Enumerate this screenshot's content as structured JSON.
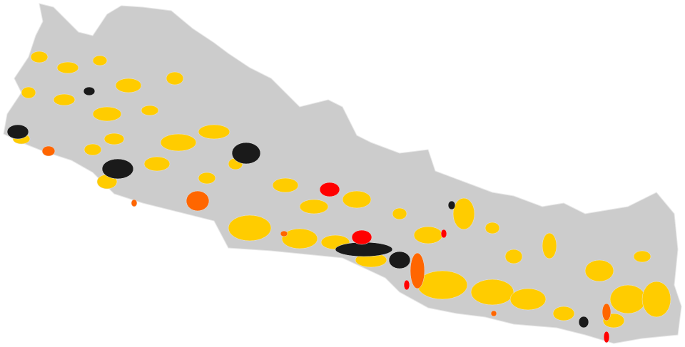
{
  "map": {
    "region": "Nepal",
    "colors": {
      "background": "#ffffff",
      "base": "#cccccc",
      "border": "#e6e6e6",
      "category_yellow": "#ffcc00",
      "category_black": "#1a1a1a",
      "category_red": "#ff0000",
      "category_orange": "#ff6600"
    }
  }
}
